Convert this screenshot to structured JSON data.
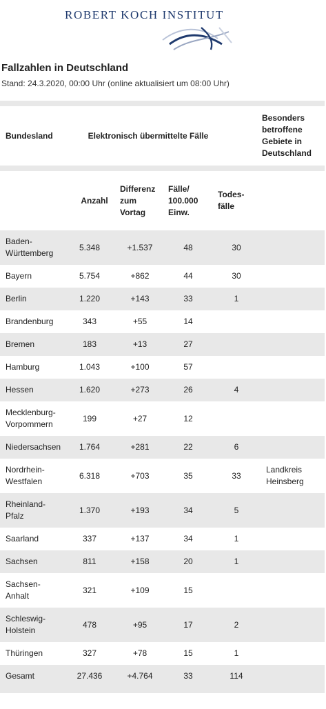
{
  "header": {
    "org_name": "ROBERT KOCH INSTITUT"
  },
  "title": "Fallzahlen in Deutschland",
  "subtitle": "Stand: 24.3.2020, 00:00 Uhr (online aktualisiert um 08:00 Uhr)",
  "table": {
    "head1": {
      "state": "Bundesland",
      "group": "Elektronisch übermittelte Fälle",
      "areas": "Besonders betroffene Gebiete in Deutschland"
    },
    "head2": {
      "count": "Anzahl",
      "diff": "Differenz zum Vortag",
      "per100k": "Fälle/ 100.000 Einw.",
      "deaths": "Todes-fälle"
    },
    "rows": [
      {
        "state": "Baden-Württemberg",
        "count": "5.348",
        "diff": "+1.537",
        "per100k": "48",
        "deaths": "30",
        "areas": ""
      },
      {
        "state": "Bayern",
        "count": "5.754",
        "diff": "+862",
        "per100k": "44",
        "deaths": "30",
        "areas": ""
      },
      {
        "state": "Berlin",
        "count": "1.220",
        "diff": "+143",
        "per100k": "33",
        "deaths": "1",
        "areas": ""
      },
      {
        "state": "Brandenburg",
        "count": "343",
        "diff": "+55",
        "per100k": "14",
        "deaths": "",
        "areas": ""
      },
      {
        "state": "Bremen",
        "count": "183",
        "diff": "+13",
        "per100k": "27",
        "deaths": "",
        "areas": ""
      },
      {
        "state": "Hamburg",
        "count": "1.043",
        "diff": "+100",
        "per100k": "57",
        "deaths": "",
        "areas": ""
      },
      {
        "state": "Hessen",
        "count": "1.620",
        "diff": "+273",
        "per100k": "26",
        "deaths": "4",
        "areas": ""
      },
      {
        "state": "Mecklenburg-Vorpommern",
        "count": "199",
        "diff": "+27",
        "per100k": "12",
        "deaths": "",
        "areas": ""
      },
      {
        "state": "Niedersachsen",
        "count": "1.764",
        "diff": "+281",
        "per100k": "22",
        "deaths": "6",
        "areas": ""
      },
      {
        "state": "Nordrhein-Westfalen",
        "count": "6.318",
        "diff": "+703",
        "per100k": "35",
        "deaths": "33",
        "areas": "Landkreis Heinsberg"
      },
      {
        "state": "Rheinland-Pfalz",
        "count": "1.370",
        "diff": "+193",
        "per100k": "34",
        "deaths": "5",
        "areas": ""
      },
      {
        "state": "Saarland",
        "count": "337",
        "diff": "+137",
        "per100k": "34",
        "deaths": "1",
        "areas": ""
      },
      {
        "state": "Sachsen",
        "count": "811",
        "diff": "+158",
        "per100k": "20",
        "deaths": "1",
        "areas": ""
      },
      {
        "state": "Sachsen-Anhalt",
        "count": "321",
        "diff": "+109",
        "per100k": "15",
        "deaths": "",
        "areas": ""
      },
      {
        "state": "Schleswig-Holstein",
        "count": "478",
        "diff": "+95",
        "per100k": "17",
        "deaths": "2",
        "areas": ""
      },
      {
        "state": "Thüringen",
        "count": "327",
        "diff": "+78",
        "per100k": "15",
        "deaths": "1",
        "areas": ""
      }
    ],
    "total": {
      "state": "Gesamt",
      "count": "27.436",
      "diff": "+4.764",
      "per100k": "33",
      "deaths": "114",
      "areas": ""
    }
  }
}
